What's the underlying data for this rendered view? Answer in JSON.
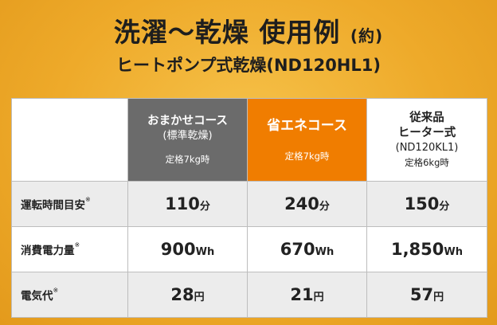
{
  "title": {
    "main": "洗濯〜乾燥 使用例",
    "note": "(約)"
  },
  "subtitle": "ヒートポンプ式乾燥(ND120HL1)",
  "table": {
    "columns": [
      {
        "name": "おまかせコース",
        "sub": "(標準乾燥)",
        "capacity": "定格7kg時",
        "color": "#6b6b6b"
      },
      {
        "name": "省エネコース",
        "capacity": "定格7kg時",
        "color": "#f07d00"
      },
      {
        "name": "従来品",
        "name2": "ヒーター式",
        "sub": "(ND120KL1)",
        "capacity": "定格6kg時",
        "color": "#ffffff"
      }
    ],
    "rows": [
      {
        "label": "運転時間目安",
        "mark": "※",
        "values": [
          "110",
          "240",
          "150"
        ],
        "unit": "分"
      },
      {
        "label": "消費電力量",
        "mark": "※",
        "values": [
          "900",
          "670",
          "1,850"
        ],
        "unit": "Wh"
      },
      {
        "label": "電気代",
        "mark": "※",
        "values": [
          "28",
          "21",
          "57"
        ],
        "unit": "円"
      }
    ]
  }
}
